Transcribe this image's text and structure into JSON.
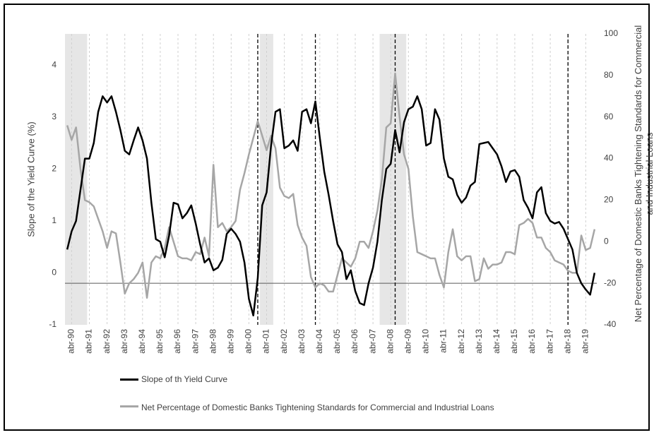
{
  "chart_data": {
    "type": "line",
    "ylabel": "Slope of the Yield Curve (%)",
    "y2label": "Net Percentage of Domestic Banks Tightening Standards for Commercial and Industrial Loans",
    "categories": [
      null,
      "abr-90",
      null,
      null,
      null,
      "abr-91",
      null,
      null,
      null,
      "abr-92",
      null,
      null,
      null,
      "abr-93",
      null,
      null,
      null,
      "abr-94",
      null,
      null,
      null,
      "abr-95",
      null,
      null,
      null,
      "abr-96",
      null,
      null,
      null,
      "abr-97",
      null,
      null,
      null,
      "abr-98",
      null,
      null,
      null,
      "abr-99",
      null,
      null,
      null,
      "abr-00",
      null,
      null,
      null,
      "abr-01",
      null,
      null,
      null,
      "abr-02",
      null,
      null,
      null,
      "abr-03",
      null,
      null,
      null,
      "abr-04",
      null,
      null,
      null,
      "abr-05",
      null,
      null,
      null,
      "abr-06",
      null,
      null,
      null,
      "abr-07",
      null,
      null,
      null,
      "abr-08",
      null,
      null,
      null,
      "abr-09",
      null,
      null,
      null,
      "abr-10",
      null,
      null,
      null,
      "abr-11",
      null,
      null,
      null,
      "abr-12",
      null,
      null,
      null,
      "abr-13",
      null,
      null,
      null,
      "abr-14",
      null,
      null,
      null,
      "abr-15",
      null,
      null,
      null,
      "abr-16",
      null,
      null,
      null,
      "abr-17",
      null,
      null,
      null,
      "abr-18",
      null,
      null,
      null,
      "abr-19",
      null,
      null
    ],
    "series": [
      {
        "name": "Slope of th Yield Curve",
        "color": "#000000",
        "values": [
          0.45,
          0.8,
          1.0,
          1.6,
          2.2,
          2.2,
          2.5,
          3.1,
          3.4,
          3.28,
          3.4,
          3.1,
          2.75,
          2.35,
          2.28,
          2.55,
          2.8,
          2.55,
          2.2,
          1.35,
          0.65,
          0.6,
          0.3,
          0.72,
          1.35,
          1.32,
          1.05,
          1.15,
          1.3,
          0.95,
          0.55,
          0.2,
          0.28,
          0.05,
          0.1,
          0.25,
          0.75,
          0.85,
          0.75,
          0.6,
          0.2,
          -0.5,
          -0.82,
          -0.1,
          1.3,
          1.55,
          2.45,
          3.1,
          3.15,
          2.4,
          2.45,
          2.55,
          2.35,
          3.1,
          3.15,
          2.88,
          3.3,
          2.6,
          1.95,
          1.5,
          1.0,
          0.55,
          0.4,
          -0.12,
          0.05,
          -0.35,
          -0.58,
          -0.62,
          -0.2,
          0.1,
          0.6,
          1.4,
          2.0,
          2.1,
          2.75,
          2.32,
          2.9,
          3.15,
          3.2,
          3.4,
          3.15,
          2.45,
          2.5,
          3.15,
          2.95,
          2.2,
          1.85,
          1.8,
          1.5,
          1.35,
          1.45,
          1.68,
          1.75,
          2.48,
          2.5,
          2.52,
          2.4,
          2.28,
          2.05,
          1.75,
          1.95,
          1.98,
          1.85,
          1.4,
          1.25,
          1.05,
          1.55,
          1.65,
          1.15,
          1.0,
          0.95,
          0.98,
          0.85,
          0.65,
          0.45,
          0.0,
          -0.2,
          -0.32,
          -0.42,
          0.0
        ]
      },
      {
        "name": "Net Percentage of Domestic Banks Tightening Standards for Commercial and Industrial Loans",
        "color": "#a6a6a6",
        "axis": "y2",
        "values": [
          56,
          49,
          55,
          35,
          20,
          19,
          17,
          11,
          5,
          -3,
          5,
          4,
          -10,
          -25,
          -20,
          -18,
          -15,
          -10,
          -27,
          -10,
          -7,
          -8,
          -3,
          7,
          0,
          -7,
          -8,
          -8,
          -9,
          -5,
          -6,
          2,
          -7,
          37,
          7,
          9,
          5,
          7,
          10,
          25,
          33,
          42,
          50,
          58,
          51,
          44,
          51,
          45,
          26,
          22,
          21,
          23,
          8,
          2,
          -2,
          -17,
          -22,
          -20,
          -21,
          -24,
          -24,
          -16,
          -8,
          -10,
          -12,
          -8,
          0,
          0,
          -3,
          5,
          15,
          30,
          55,
          57,
          81,
          60,
          42,
          35,
          12,
          -5,
          -6,
          -7,
          -8,
          -8,
          -16,
          -22,
          -5,
          6,
          -7,
          -9,
          -7,
          -7,
          -19,
          -18,
          -8,
          -13,
          -11,
          -11,
          -10,
          -5,
          -5,
          -6,
          8,
          9,
          11,
          9,
          2,
          2,
          -3,
          -5,
          -9,
          -10,
          -11,
          -14,
          -15,
          -15,
          3,
          -4,
          -3,
          6
        ]
      }
    ],
    "ylim": [
      -1,
      4.6
    ],
    "yticks": [
      -1,
      0,
      1,
      2,
      3,
      4
    ],
    "y2lim": [
      -40,
      100
    ],
    "y2ticks": [
      -40,
      -20,
      0,
      20,
      40,
      60,
      80,
      100
    ],
    "hline": -0.2,
    "shaded_periods": [
      [
        0,
        5
      ],
      [
        44,
        47
      ],
      [
        71,
        77
      ]
    ],
    "vlines": [
      43,
      56,
      74,
      113
    ],
    "grid": true
  }
}
